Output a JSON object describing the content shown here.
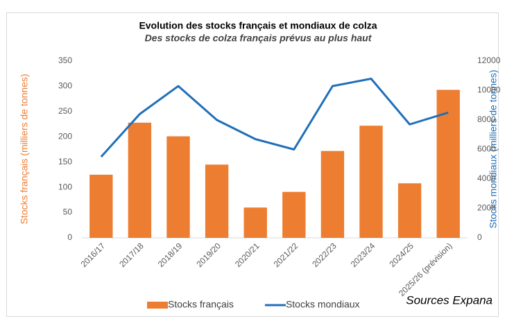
{
  "chart_data": {
    "type": "bar_line",
    "title": "Evolution des stocks français et mondiaux de colza",
    "subtitle": "Des stocks de colza français prévus au plus haut",
    "y_label": "Stocks français (milliers de tonnes)",
    "y2_label": "Stocks mondiaux (milliers de tonnes)",
    "source": "Sources Expana",
    "categories": [
      "2016/17",
      "2017/18",
      "2018/19",
      "2019/20",
      "2020/21",
      "2021/22",
      "2022/23",
      "2023/24",
      "2024/25",
      "2025/26 (prévision)"
    ],
    "series": [
      {
        "name": "Stocks français",
        "type": "bar",
        "color": "#ED7D31",
        "values": [
          125,
          228,
          201,
          145,
          60,
          91,
          172,
          222,
          108,
          293
        ]
      },
      {
        "name": "Stocks mondiaux",
        "type": "line",
        "axis": "y2",
        "color": "#1F6FB8",
        "values": [
          5500,
          8400,
          10300,
          8000,
          6700,
          6000,
          10300,
          10800,
          7700,
          8500
        ]
      }
    ],
    "ylim": [
      0,
      350
    ],
    "yticks": [
      0,
      50,
      100,
      150,
      200,
      250,
      300,
      350
    ],
    "y2lim": [
      0,
      12000
    ],
    "y2ticks": [
      0,
      2000,
      4000,
      6000,
      8000,
      10000,
      12000
    ],
    "legend": "bottom"
  }
}
